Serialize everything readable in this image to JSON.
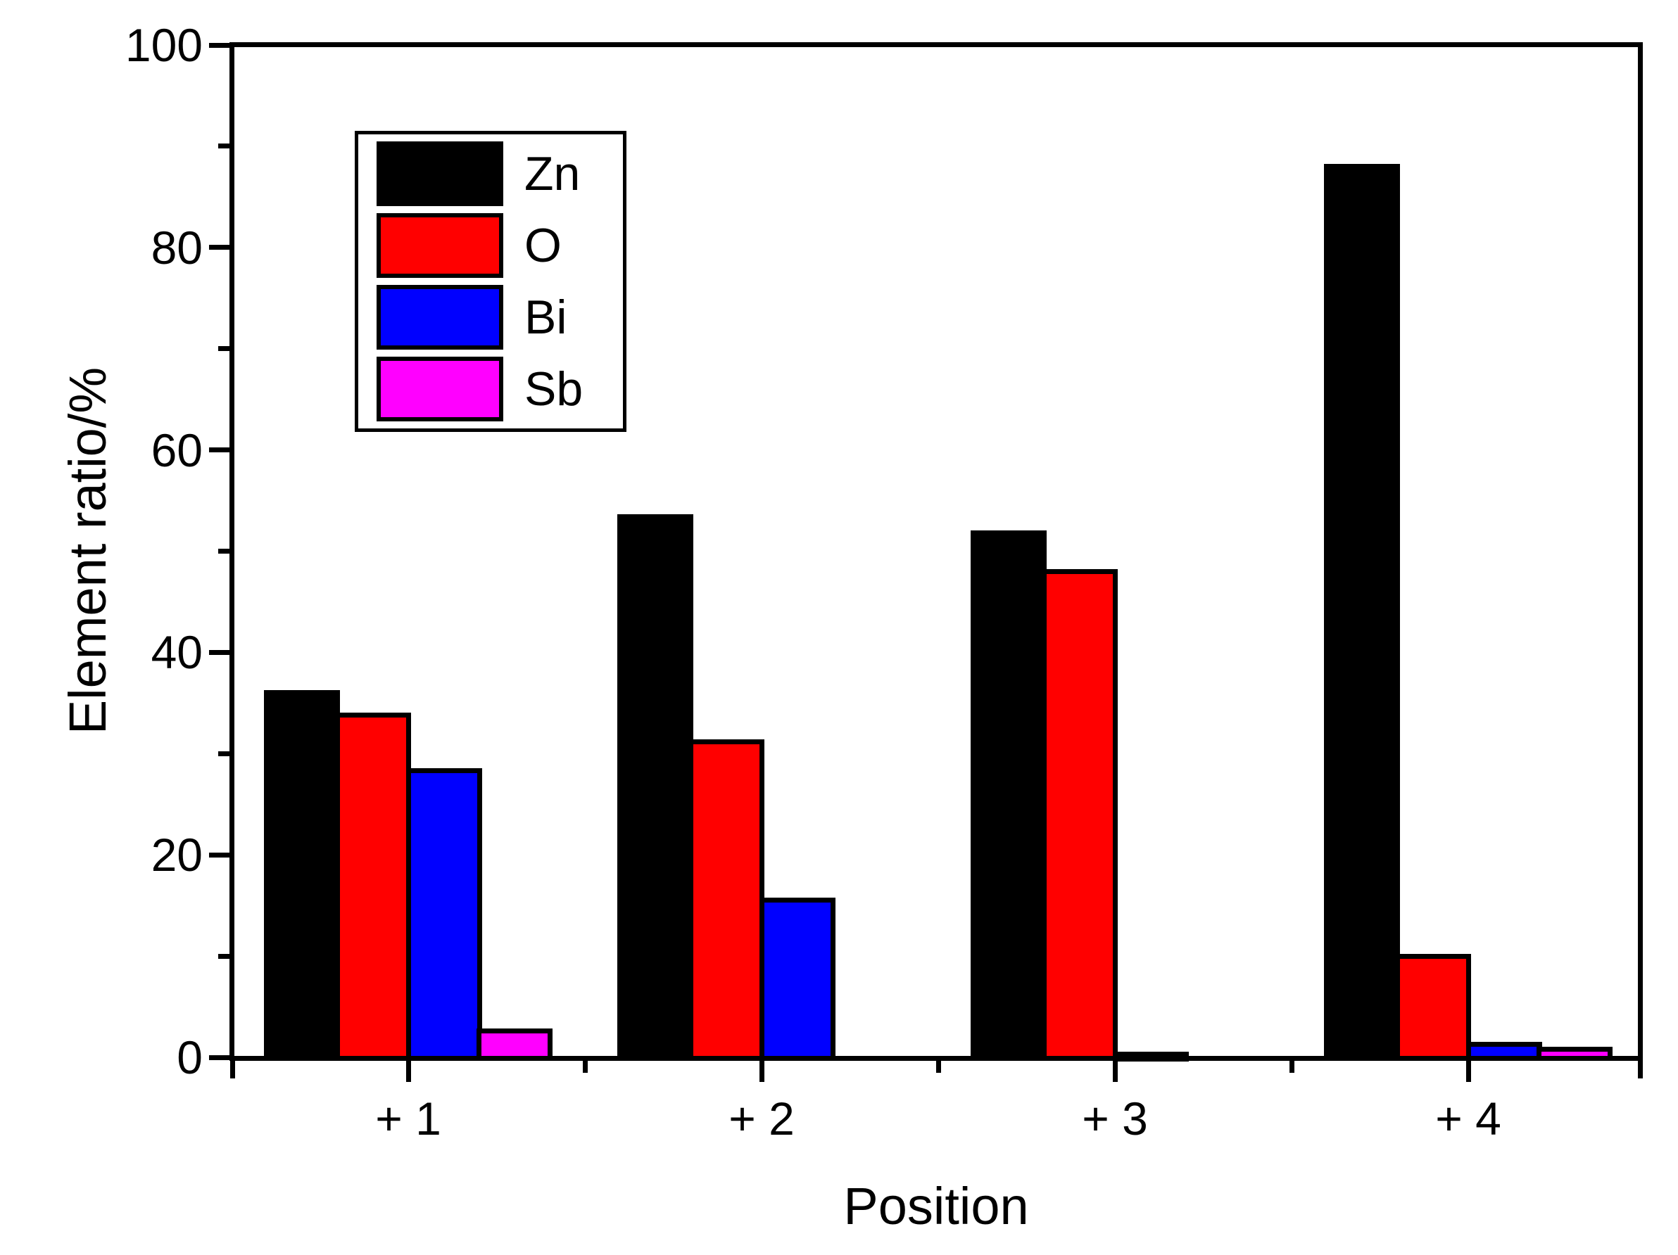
{
  "figure": {
    "background_color": "#ffffff",
    "frame_color": "#000000"
  },
  "chart_data": {
    "type": "bar",
    "title": "",
    "xlabel": "Position",
    "ylabel": "Element ratio/%",
    "categories": [
      "+ 1",
      "+ 2",
      "+ 3",
      "+ 4"
    ],
    "series": [
      {
        "name": "Zn",
        "color": "#000000",
        "values": [
          36.0,
          53.4,
          51.8,
          88.0
        ]
      },
      {
        "name": "O",
        "color": "#ff0000",
        "values": [
          33.8,
          31.2,
          48.0,
          10.0
        ]
      },
      {
        "name": "Bi",
        "color": "#0000ff",
        "values": [
          28.3,
          15.5,
          0.3,
          1.3
        ]
      },
      {
        "name": "Sb",
        "color": "#ff00ff",
        "values": [
          2.6,
          0,
          0,
          0.8
        ]
      }
    ],
    "ylim": [
      0,
      100
    ],
    "yticks": [
      0,
      20,
      40,
      60,
      80,
      100
    ],
    "ytick_labels": [
      "0",
      "20",
      "40",
      "60",
      "80",
      "100"
    ],
    "y_minor_ticks": [
      10,
      30,
      50,
      70,
      90
    ],
    "legend_position": "upper-left-inside",
    "legend_entries": [
      "Zn",
      "O",
      "Bi",
      "Sb"
    ],
    "grid": false,
    "bar_outline_color": "#000000"
  }
}
